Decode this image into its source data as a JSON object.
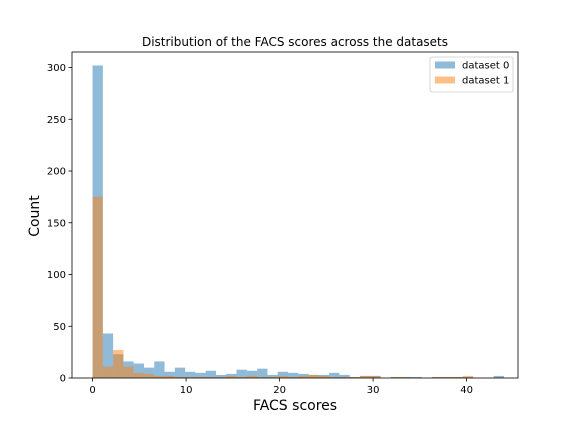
{
  "chart_data": {
    "type": "bar",
    "title": "Distribution of the FACS scores across the datasets",
    "xlabel": "FACS scores",
    "ylabel": "Count",
    "xlim": [
      -2.2,
      45.5
    ],
    "ylim": [
      0,
      315
    ],
    "xticks": [
      0,
      10,
      20,
      30,
      40
    ],
    "yticks": [
      0,
      50,
      100,
      150,
      200,
      250,
      300
    ],
    "grid": false,
    "legend_position": "top-right",
    "bin_edges": [
      0,
      1.1,
      2.2,
      3.3,
      4.4,
      5.5,
      6.6,
      7.7,
      8.8,
      9.9,
      11.0,
      12.1,
      13.2,
      14.3,
      15.4,
      16.5,
      17.6,
      18.7,
      19.8,
      20.9,
      22.0,
      23.1,
      24.2,
      25.3,
      26.4,
      27.5,
      28.6,
      29.7,
      30.8,
      31.9,
      33.0,
      34.1,
      35.2,
      36.3,
      37.4,
      38.5,
      39.6,
      40.7,
      41.8,
      42.9,
      44.0
    ],
    "series": [
      {
        "name": "dataset 0",
        "color": "#1f77b4",
        "opacity": 0.5,
        "values": [
          302,
          43,
          23,
          16,
          14,
          10,
          16,
          6,
          10,
          6,
          5,
          7,
          3,
          4,
          8,
          7,
          9,
          3,
          6,
          5,
          4,
          3,
          3,
          5,
          3,
          1,
          2,
          2,
          0,
          1,
          1,
          1,
          0,
          1,
          1,
          1,
          1,
          0,
          0,
          2
        ]
      },
      {
        "name": "dataset 1",
        "color": "#ff7f0e",
        "opacity": 0.5,
        "values": [
          175,
          11,
          27,
          11,
          5,
          4,
          2,
          2,
          1,
          1,
          1,
          1,
          1,
          2,
          1,
          2,
          1,
          1,
          2,
          1,
          2,
          3,
          2,
          1,
          1,
          1,
          2,
          2,
          0,
          1,
          1,
          0,
          0,
          1,
          1,
          1,
          2,
          0,
          0,
          0
        ]
      }
    ]
  }
}
